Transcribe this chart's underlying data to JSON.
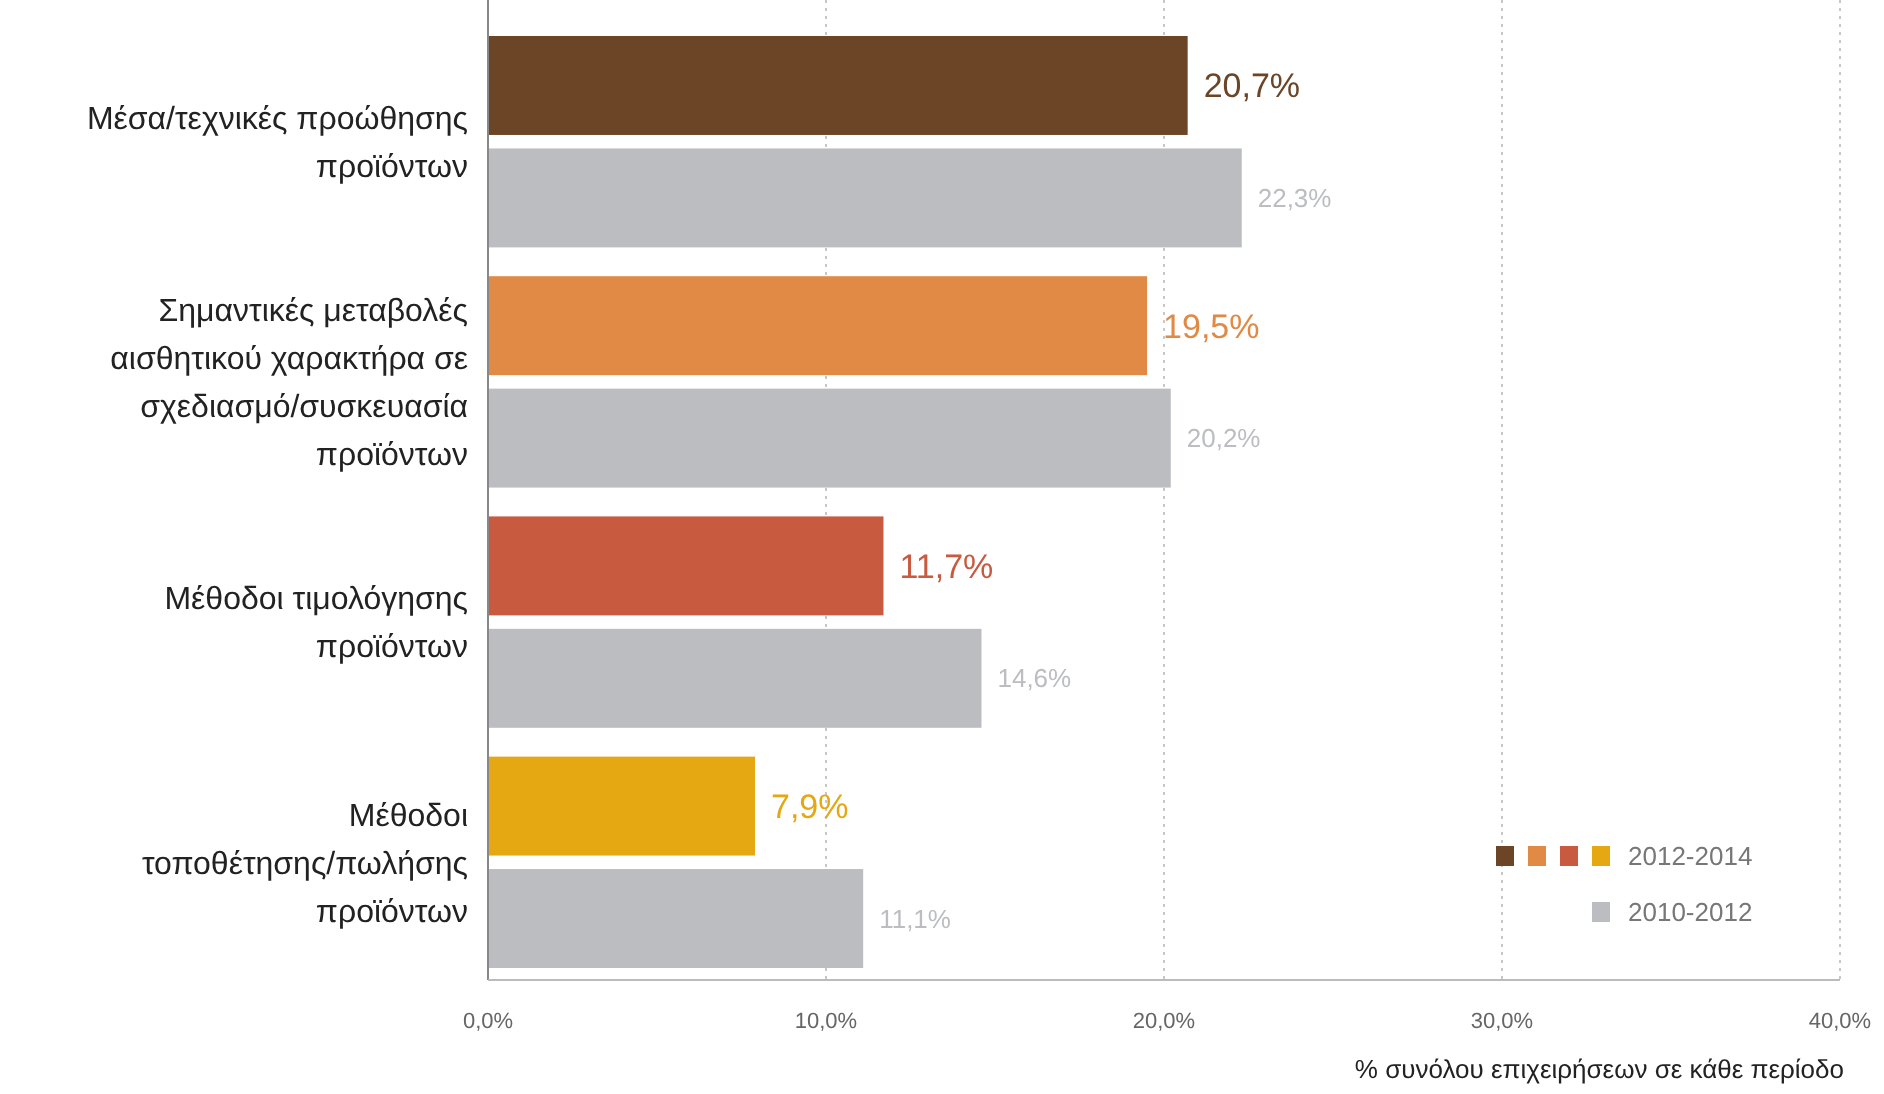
{
  "chart_data": {
    "type": "bar",
    "orientation": "horizontal",
    "categories": [
      "Μέσα/τεχνικές προώθησης προϊόντων",
      "Σημαντικές μεταβολές αισθητικού χαρακτήρα σε σχεδιασμό/συσκευασία προϊόντων",
      "Μέθοδοι τιμολόγησης προϊόντων",
      "Μέθοδοι τοποθέτησης/πωλήσης προϊόντων"
    ],
    "series": [
      {
        "name": "2012-2014",
        "colors": [
          "#6b4526",
          "#e08a45",
          "#c85a40",
          "#e5a812"
        ],
        "values": [
          20.7,
          19.5,
          11.7,
          7.9
        ],
        "value_labels": [
          "20,7%",
          "19,5%",
          "11,7%",
          "7,9%"
        ]
      },
      {
        "name": "2010-2012",
        "color": "#bcbdc1",
        "values": [
          22.3,
          20.2,
          14.6,
          11.1
        ],
        "value_labels": [
          "22,3%",
          "20,2%",
          "14,6%",
          "11,1%"
        ]
      }
    ],
    "xlim": [
      0,
      40
    ],
    "xticks": [
      {
        "value": 0,
        "label": "0,0%"
      },
      {
        "value": 10,
        "label": "10,0%"
      },
      {
        "value": 20,
        "label": "20,0%"
      },
      {
        "value": 30,
        "label": "30,0%"
      },
      {
        "value": 40,
        "label": "40,0%"
      }
    ],
    "xlabel": "% συνόλου επιχειρήσεων σε κάθε περίοδο",
    "grid": "x",
    "legend": "bottom right"
  }
}
